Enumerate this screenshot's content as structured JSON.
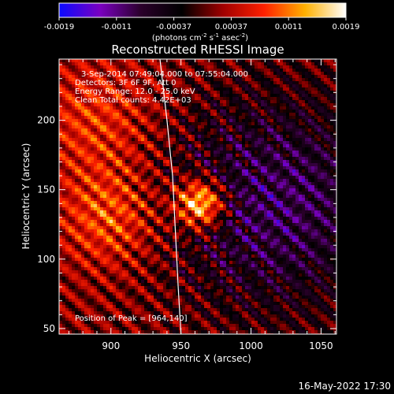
{
  "colorbar": {
    "ticks": [
      "-0.0019",
      "-0.0011",
      "-0.00037",
      "0.00037",
      "0.0011",
      "0.0019"
    ],
    "unit_main": "(photons cm",
    "unit_sup1": "-2",
    "unit_mid1": " s",
    "unit_sup2": "-1",
    "unit_mid2": " asec",
    "unit_sup3": "-2",
    "unit_end": ")",
    "colors": [
      "#0a0aff",
      "#7a00c0",
      "#2a002a",
      "#000000",
      "#a00000",
      "#ff2000",
      "#ffb000",
      "#ffffff"
    ]
  },
  "chart_data": {
    "type": "heatmap",
    "title": "Reconstructed RHESSI Image",
    "xlabel": "Heliocentric X (arcsec)",
    "ylabel": "Heliocentric Y (arcsec)",
    "xlim": [
      863,
      1061
    ],
    "ylim": [
      46,
      244
    ],
    "xticks": [
      900,
      950,
      1000,
      1050
    ],
    "yticks": [
      50,
      100,
      150,
      200
    ],
    "peak": {
      "x": 964,
      "y": 140,
      "label": "Position of Peak = [964,140]"
    },
    "annotations": [
      "3-Sep-2014 07:49:04.000 to 07:55:04.000",
      "Detectors: 3F 6F 9F, Att 0",
      "Energy Range: 12.0 - 25.0 keV",
      "Clean     Total counts: 4.42E+03"
    ],
    "limb": [
      [
        935,
        244
      ],
      [
        940,
        200
      ],
      [
        944,
        160
      ],
      [
        946,
        120
      ],
      [
        948,
        80
      ],
      [
        950,
        46
      ]
    ],
    "value_range": [
      -0.0019,
      0.0019
    ],
    "bright_sources": [
      {
        "x": 964,
        "y": 140,
        "value": 0.0019,
        "width": 12
      },
      {
        "x": 900,
        "y": 130,
        "value": 0.0008,
        "width": 25
      },
      {
        "x": 890,
        "y": 200,
        "value": 0.0006,
        "width": 30
      }
    ],
    "dark_region": {
      "x": 1020,
      "y": 140,
      "value": -0.0011,
      "width": 60
    }
  },
  "footer": {
    "date": "16-May-2022 17:30"
  }
}
